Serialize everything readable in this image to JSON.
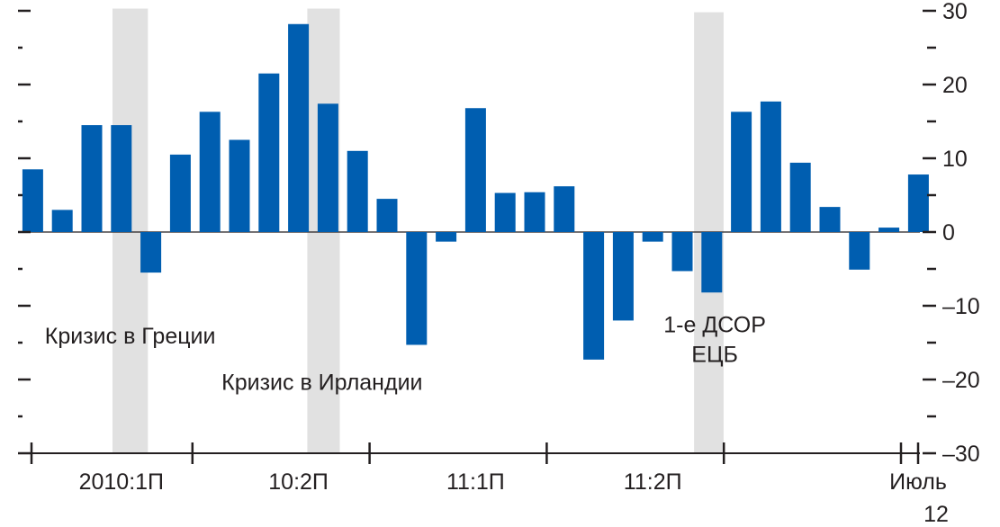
{
  "chart_data": {
    "type": "bar",
    "title": "",
    "xlabel": "",
    "ylabel": "",
    "ylim": [
      -30,
      30
    ],
    "yticks": [
      30,
      20,
      10,
      0,
      -10,
      -20,
      -30
    ],
    "ytick_labels": [
      "30",
      "20",
      "10",
      "0",
      "–10",
      "–20",
      "–30"
    ],
    "y_axis_side": "right",
    "bar_color": "#005eb0",
    "shade_color": "#e1e1e1",
    "axis_color": "#231f20",
    "values": [
      8.5,
      3,
      14.5,
      14.5,
      -5.5,
      10.5,
      16.3,
      12.5,
      21.5,
      28.2,
      17.4,
      11,
      4.5,
      -15.3,
      -1.3,
      16.8,
      5.3,
      5.4,
      6.2,
      -17.3,
      -12,
      -1.3,
      -5.3,
      -8.2,
      16.3,
      17.7,
      9.4,
      3.4,
      -5.1,
      0.6,
      7.8
    ],
    "x_tick_labels": [
      {
        "index": 3.5,
        "label": "2010:1П"
      },
      {
        "index": 9.5,
        "label": "10:2П"
      },
      {
        "index": 15.5,
        "label": "11:1П"
      },
      {
        "index": 21.5,
        "label": "11:2П"
      }
    ],
    "end_label": {
      "line1": "Июль",
      "line2": "12"
    },
    "shaded_periods": [
      {
        "from": 3.2,
        "to": 4.4,
        "top": 30.3
      },
      {
        "from": 9.8,
        "to": 10.9,
        "top": 30.3
      },
      {
        "from": 22.9,
        "to": 23.9,
        "top": 29.8
      }
    ],
    "annotations": [
      {
        "name": "greece-crisis-annotation",
        "lines": [
          "Кризис в Греции"
        ],
        "x": 3.8,
        "y": -14,
        "anchor": "middle"
      },
      {
        "name": "ireland-crisis-annotation",
        "lines": [
          "Кризис в Ирландии"
        ],
        "x": 10.3,
        "y": -20.3,
        "anchor": "middle"
      },
      {
        "name": "ecb-ltro-annotation",
        "lines": [
          "1-е ДСОР",
          "ЕЦБ"
        ],
        "x": 23.6,
        "y": -12.5,
        "anchor": "middle"
      }
    ]
  }
}
